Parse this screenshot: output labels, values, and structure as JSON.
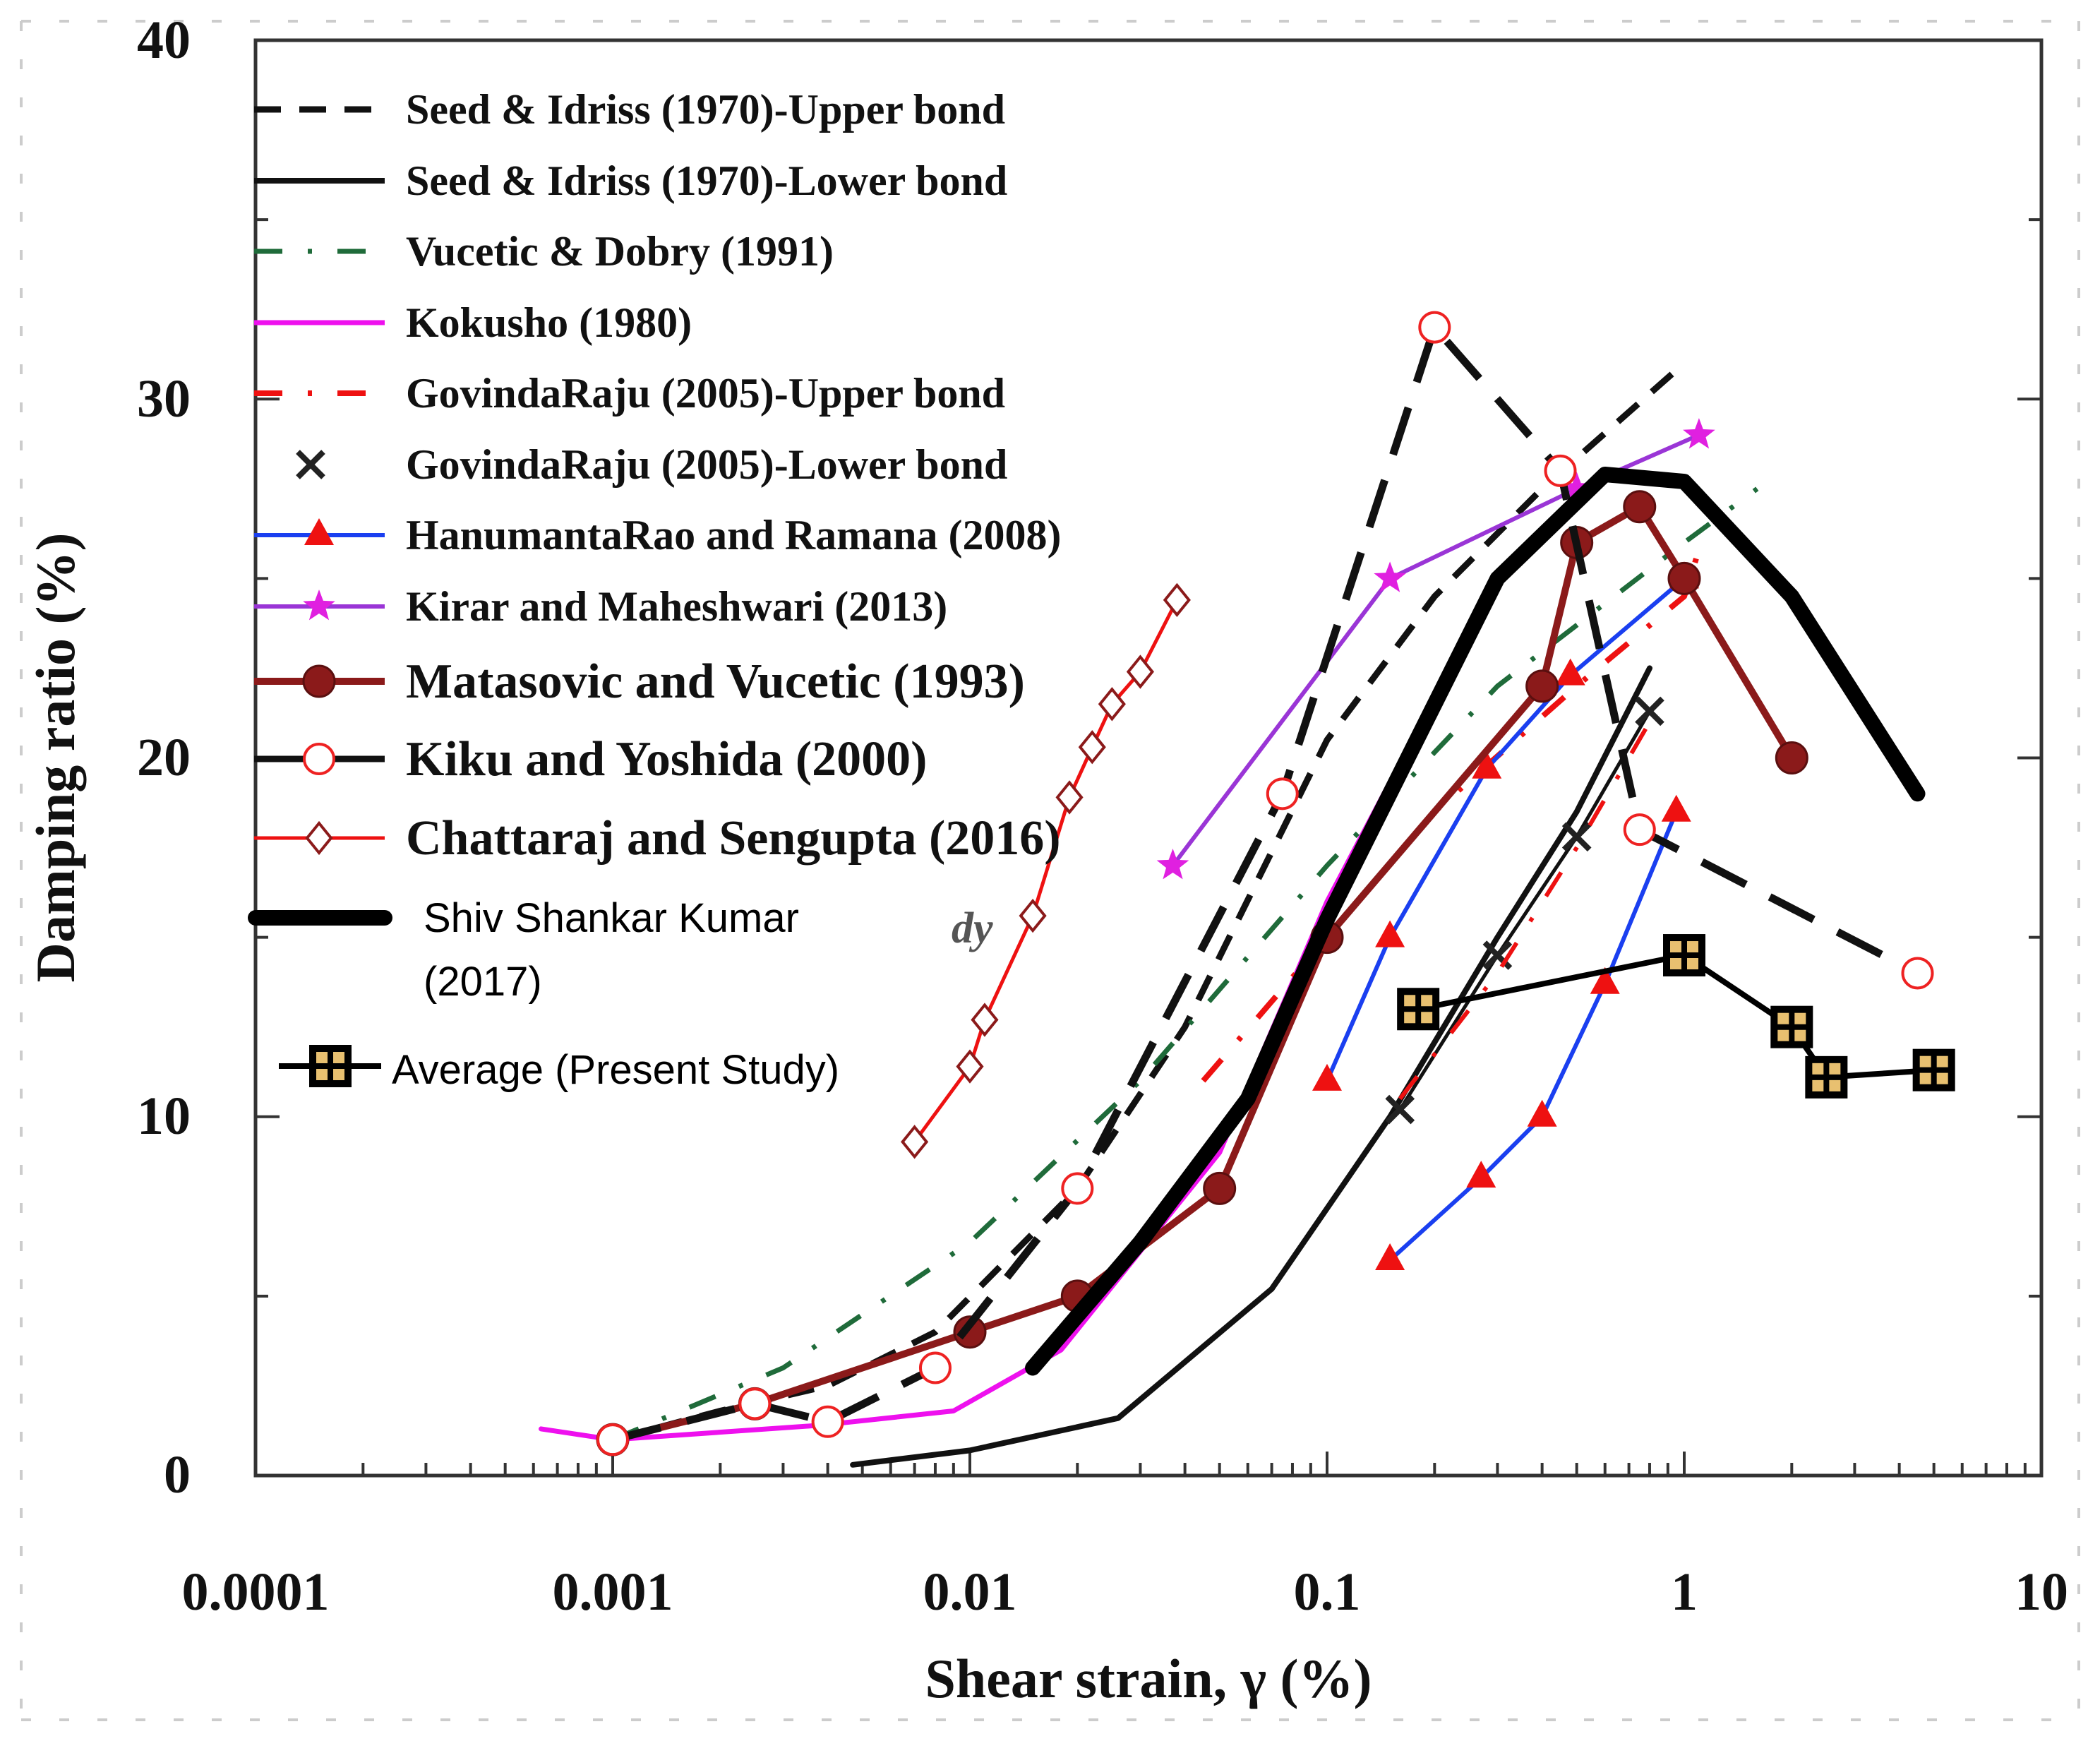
{
  "chart_data": {
    "type": "line",
    "xlabel": "Shear strain, γ (%)",
    "ylabel": "Damping ratio (%)",
    "xscale": "log",
    "xlim": [
      0.0001,
      10
    ],
    "ylim": [
      0,
      40
    ],
    "x_ticks": [
      "0.0001",
      "0.001",
      "0.01",
      "0.1",
      "1",
      "10"
    ],
    "y_ticks": [
      "0",
      "10",
      "20",
      "30",
      "40"
    ],
    "grid": false,
    "legend_position": "top-left",
    "series": [
      {
        "name": "Seed & Idriss (1970)-Upper bond",
        "color": "#111111",
        "dash": "dashed",
        "marker": "none",
        "width": 9,
        "points": [
          [
            0.001,
            1.0
          ],
          [
            0.002,
            1.8
          ],
          [
            0.004,
            2.5
          ],
          [
            0.008,
            4.0
          ],
          [
            0.02,
            8.0
          ],
          [
            0.04,
            12.5
          ],
          [
            0.1,
            20.5
          ],
          [
            0.2,
            24.5
          ],
          [
            0.4,
            27.5
          ],
          [
            1.0,
            31.0
          ]
        ]
      },
      {
        "name": "Seed & Idriss (1970)-Lower bond",
        "color": "#111111",
        "dash": "solid",
        "marker": "none",
        "width": 8,
        "points": [
          [
            0.0047,
            0.3
          ],
          [
            0.01,
            0.7
          ],
          [
            0.026,
            1.6
          ],
          [
            0.07,
            5.2
          ],
          [
            0.15,
            10.0
          ],
          [
            0.3,
            15.0
          ],
          [
            0.5,
            18.5
          ],
          [
            0.8,
            22.5
          ]
        ]
      },
      {
        "name": "Vucetic & Dobry (1991)",
        "color": "#1f6b3a",
        "dash": "dashdot",
        "marker": "none",
        "width": 7,
        "points": [
          [
            0.001,
            1.0
          ],
          [
            0.003,
            3.0
          ],
          [
            0.01,
            6.5
          ],
          [
            0.03,
            11.0
          ],
          [
            0.1,
            17.0
          ],
          [
            0.3,
            22.0
          ],
          [
            1.0,
            26.0
          ],
          [
            1.6,
            27.5
          ]
        ]
      },
      {
        "name": "Kokusho (1980)",
        "color": "#ee10ee",
        "dash": "solid",
        "marker": "none",
        "width": 7,
        "points": [
          [
            0.00063,
            1.3
          ],
          [
            0.001,
            1.0
          ],
          [
            0.0038,
            1.4
          ],
          [
            0.009,
            1.8
          ],
          [
            0.018,
            3.5
          ],
          [
            0.05,
            9.0
          ],
          [
            0.1,
            16.0
          ],
          [
            0.3,
            25.0
          ]
        ]
      },
      {
        "name": "GovindaRaju (2005)-Upper bond",
        "color": "#ee1111",
        "dash": "dashdot",
        "marker": "none",
        "width": 8,
        "points": [
          [
            0.045,
            11.0
          ],
          [
            0.1,
            15.0
          ],
          [
            0.2,
            18.5
          ],
          [
            0.5,
            22.0
          ],
          [
            1.0,
            24.5
          ],
          [
            1.1,
            25.8
          ]
        ]
      },
      {
        "name": "GovindaRaju (2005)-Lower bond",
        "color": "#111111",
        "dash": "solid",
        "marker": "x",
        "width": 5,
        "points": [
          [
            0.16,
            10.2
          ],
          [
            0.3,
            14.5
          ],
          [
            0.5,
            17.8
          ],
          [
            0.8,
            21.3
          ]
        ]
      },
      {
        "name": "GovindaRaju (2005)-Lower bond line",
        "color": "#ee1111",
        "dash": "dashdot",
        "marker": "none",
        "width": 6,
        "points": [
          [
            0.16,
            10.5
          ],
          [
            0.3,
            14.0
          ],
          [
            0.5,
            17.5
          ],
          [
            0.8,
            21.0
          ]
        ]
      },
      {
        "name": "HanumantaRao and Ramana (2008)",
        "color": "#1a3ff0",
        "dash": "solid",
        "marker": "triangle",
        "width": 6,
        "points": [
          [
            0.15,
            6.0
          ],
          [
            0.27,
            8.3
          ],
          [
            0.4,
            10.0
          ],
          [
            0.6,
            13.7
          ],
          [
            0.95,
            18.5
          ]
        ]
      },
      {
        "name": "HanumantaRao and Ramana (2008) upper",
        "color": "#1a3ff0",
        "dash": "solid",
        "marker": "triangle",
        "width": 6,
        "points": [
          [
            0.1,
            11.0
          ],
          [
            0.15,
            15.0
          ],
          [
            0.28,
            19.7
          ],
          [
            0.48,
            22.3
          ],
          [
            1.0,
            25.0
          ]
        ]
      },
      {
        "name": "Kirar and Maheshwari (2013)",
        "color": "#9a35d6",
        "dash": "solid",
        "marker": "star",
        "width": 6,
        "points": [
          [
            0.037,
            17.0
          ],
          [
            0.15,
            25.0
          ],
          [
            0.5,
            27.5
          ],
          [
            1.1,
            29.0
          ]
        ]
      },
      {
        "name": "Matasovic and Vucetic (1993)",
        "color": "#8b1a1a",
        "dash": "solid",
        "marker": "dot",
        "width": 10,
        "points": [
          [
            0.001,
            1.0
          ],
          [
            0.0025,
            2.0
          ],
          [
            0.01,
            4.0
          ],
          [
            0.02,
            5.0
          ],
          [
            0.05,
            8.0
          ],
          [
            0.1,
            15.0
          ],
          [
            0.4,
            22.0
          ],
          [
            0.5,
            26.0
          ],
          [
            0.75,
            27.0
          ],
          [
            1.0,
            25.0
          ],
          [
            2.0,
            20.0
          ]
        ]
      },
      {
        "name": "Kiku and Yoshida (2000)",
        "color": "#111111",
        "dash": "longdash",
        "marker": "ring",
        "width": 11,
        "points": [
          [
            0.001,
            1.0
          ],
          [
            0.0025,
            2.0
          ],
          [
            0.004,
            1.5
          ],
          [
            0.008,
            3.0
          ],
          [
            0.02,
            8.0
          ],
          [
            0.075,
            19.0
          ],
          [
            0.2,
            32.0
          ],
          [
            0.45,
            28.0
          ],
          [
            0.75,
            18.0
          ],
          [
            4.5,
            14.0
          ]
        ]
      },
      {
        "name": "Chattaraj and Sengupta (2016)",
        "color": "#ee1111",
        "dash": "solid",
        "marker": "diamond",
        "width": 5,
        "points": [
          [
            0.007,
            9.3
          ],
          [
            0.01,
            11.4
          ],
          [
            0.011,
            12.7
          ],
          [
            0.015,
            15.6
          ],
          [
            0.019,
            18.9
          ],
          [
            0.022,
            20.3
          ],
          [
            0.025,
            21.5
          ],
          [
            0.03,
            22.4
          ],
          [
            0.038,
            24.4
          ]
        ]
      },
      {
        "name": "Shiv Shankar Kumar (2017)",
        "color": "#000000",
        "dash": "solid",
        "marker": "none",
        "width": 22,
        "points": [
          [
            0.015,
            3.0
          ],
          [
            0.03,
            6.5
          ],
          [
            0.06,
            10.5
          ],
          [
            0.1,
            15.5
          ],
          [
            0.3,
            25.0
          ],
          [
            0.6,
            27.9
          ],
          [
            1.0,
            27.7
          ],
          [
            2.0,
            24.5
          ],
          [
            4.5,
            19.0
          ]
        ]
      },
      {
        "name": "Average (Present Study)",
        "color": "#000000",
        "dash": "solid",
        "marker": "square-plus",
        "width": 8,
        "points": [
          [
            0.18,
            13.0
          ],
          [
            1.0,
            14.5
          ],
          [
            2.0,
            12.5
          ],
          [
            2.5,
            11.1
          ],
          [
            5.0,
            11.3
          ]
        ]
      }
    ],
    "legend": [
      {
        "label": "Seed & Idriss (1970)-Upper bond",
        "style": "dashed-black"
      },
      {
        "label": "Seed & Idriss (1970)-Lower bond",
        "style": "solid-black"
      },
      {
        "label": "Vucetic & Dobry (1991)",
        "style": "dashdot-green"
      },
      {
        "label": "Kokusho (1980)",
        "style": "solid-magenta"
      },
      {
        "label": "GovindaRaju (2005)-Upper bond",
        "style": "dashdot-red"
      },
      {
        "label": "GovindaRaju (2005)-Lower bond",
        "style": "x-black"
      },
      {
        "label": "HanumantaRao and Ramana (2008)",
        "style": "triangle-blue"
      },
      {
        "label": "Kirar and Maheshwari (2013)",
        "style": "star-purple"
      },
      {
        "label": "Matasovic and Vucetic (1993)",
        "style": "dot-maroon"
      },
      {
        "label": "Kiku and Yoshida (2000)",
        "style": "ring-black"
      },
      {
        "label": "Chattaraj and Sengupta (2016)",
        "style": "diamond-red"
      }
    ],
    "legend_kumar": {
      "line1": "Shiv Shankar Kumar",
      "line2": "(2017)"
    },
    "legend_average": "Average (Present Study)",
    "hidden_fragment": "dy"
  }
}
